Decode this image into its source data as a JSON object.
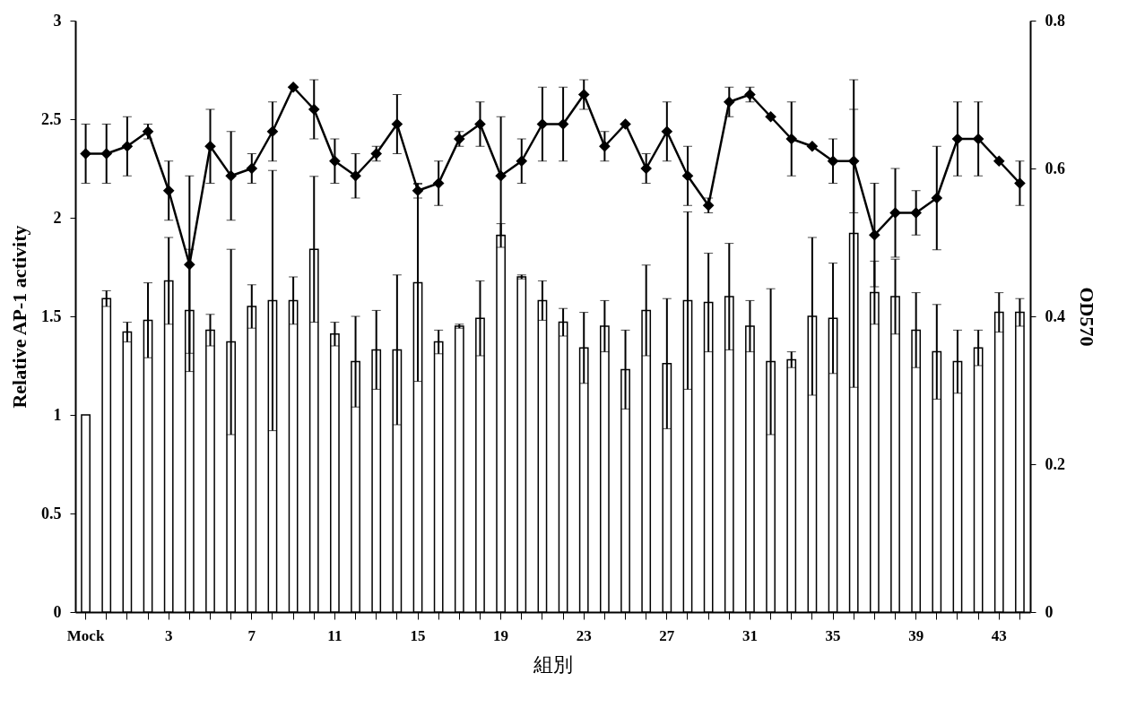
{
  "chart_data": {
    "type": "bar",
    "xlabel": "組別",
    "ylabel": "Relative AP-1 activity",
    "y2label": "OD570",
    "categories": [
      "Mock",
      null,
      null,
      null,
      "3",
      null,
      null,
      null,
      "7",
      null,
      null,
      null,
      "11",
      null,
      null,
      null,
      "15",
      null,
      null,
      null,
      "19",
      null,
      null,
      null,
      "23",
      null,
      null,
      null,
      "27",
      null,
      null,
      null,
      "31",
      null,
      null,
      null,
      "35",
      null,
      null,
      null,
      "39",
      null,
      null,
      null,
      "43",
      null
    ],
    "series": [
      {
        "color": "#ffffff",
        "values": [
          1.0,
          1.59,
          1.42,
          1.48,
          1.68,
          1.53,
          1.43,
          1.37,
          1.55,
          1.58,
          1.58,
          1.84,
          1.41,
          1.27,
          1.33,
          1.33,
          1.67,
          1.37,
          1.45,
          1.49,
          1.91,
          1.7,
          1.58,
          1.47,
          1.34,
          1.45,
          1.23,
          1.53,
          1.26,
          1.58,
          1.57,
          1.6,
          1.45,
          1.27,
          1.28,
          1.5,
          1.49,
          1.92,
          1.62,
          1.6,
          1.43,
          1.32,
          1.27,
          1.34,
          1.52,
          1.52
        ],
        "errors": [
          null,
          0.04,
          0.05,
          0.19,
          0.22,
          0.31,
          0.08,
          0.47,
          0.11,
          0.66,
          0.12,
          0.37,
          0.06,
          0.23,
          0.2,
          0.38,
          0.5,
          0.06,
          0.01,
          0.19,
          0.06,
          0.01,
          0.1,
          0.07,
          0.18,
          0.13,
          0.2,
          0.23,
          0.33,
          0.45,
          0.25,
          0.27,
          0.13,
          0.37,
          0.04,
          0.4,
          0.28,
          0.78,
          0.16,
          0.19,
          0.19,
          0.24,
          0.16,
          0.09,
          0.1,
          0.07
        ]
      },
      {
        "type": "line",
        "axis": "y2",
        "color": "#000000",
        "marker": "diamond",
        "values": [
          0.62,
          0.62,
          0.63,
          0.65,
          0.57,
          0.47,
          0.63,
          0.59,
          0.6,
          0.65,
          0.71,
          0.68,
          0.61,
          0.59,
          0.62,
          0.66,
          0.57,
          0.58,
          0.64,
          0.66,
          0.59,
          0.61,
          0.66,
          0.66,
          0.7,
          0.63,
          0.66,
          0.6,
          0.65,
          0.59,
          0.55,
          0.69,
          0.7,
          0.67,
          0.64,
          0.63,
          0.61,
          0.61,
          0.51,
          0.54,
          0.54,
          0.56,
          0.64,
          0.64,
          0.61,
          0.58
        ],
        "errors": [
          0.04,
          0.04,
          0.04,
          0.01,
          0.04,
          0.12,
          0.05,
          0.06,
          0.02,
          0.04,
          null,
          0.04,
          0.03,
          0.03,
          0.01,
          0.04,
          0.01,
          0.03,
          0.01,
          0.03,
          0.08,
          0.03,
          0.05,
          0.05,
          0.02,
          0.02,
          null,
          0.02,
          0.04,
          0.04,
          0.01,
          0.02,
          0.01,
          null,
          0.05,
          null,
          0.03,
          0.07,
          0.07,
          0.06,
          0.03,
          0.07,
          0.05,
          0.05,
          null,
          0.03
        ]
      }
    ],
    "ylim": [
      0,
      3
    ],
    "yticks": [
      0,
      0.5,
      1,
      1.5,
      2,
      2.5,
      3
    ],
    "y2lim": [
      0,
      0.8
    ],
    "y2ticks": [
      0,
      0.2,
      0.4,
      0.6,
      0.8
    ]
  }
}
